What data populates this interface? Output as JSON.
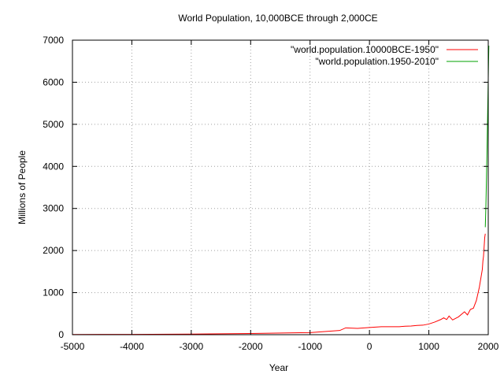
{
  "chart_data": {
    "type": "line",
    "title": "World Population, 10,000BCE through 2,000CE",
    "xlabel": "Year",
    "ylabel": "Millions of People",
    "xlim": [
      -5000,
      2000
    ],
    "ylim": [
      0,
      7000
    ],
    "x_ticks": [
      -5000,
      -4000,
      -3000,
      -2000,
      -1000,
      0,
      1000,
      2000
    ],
    "y_ticks": [
      0,
      1000,
      2000,
      3000,
      4000,
      5000,
      6000,
      7000
    ],
    "grid": true,
    "legend_position": "top-right",
    "series": [
      {
        "name": "\"world.population.10000BCE-1950\"",
        "color": "#ff0000",
        "points": [
          [
            -5000,
            5
          ],
          [
            -4000,
            7
          ],
          [
            -3000,
            14
          ],
          [
            -2000,
            27
          ],
          [
            -1000,
            50
          ],
          [
            -500,
            100
          ],
          [
            -400,
            162
          ],
          [
            -200,
            150
          ],
          [
            0,
            170
          ],
          [
            200,
            190
          ],
          [
            400,
            190
          ],
          [
            500,
            190
          ],
          [
            600,
            200
          ],
          [
            700,
            207
          ],
          [
            800,
            220
          ],
          [
            900,
            226
          ],
          [
            1000,
            254
          ],
          [
            1100,
            301
          ],
          [
            1200,
            360
          ],
          [
            1250,
            400
          ],
          [
            1300,
            360
          ],
          [
            1340,
            443
          ],
          [
            1400,
            350
          ],
          [
            1500,
            425
          ],
          [
            1600,
            545
          ],
          [
            1650,
            470
          ],
          [
            1700,
            600
          ],
          [
            1750,
            629
          ],
          [
            1800,
            813
          ],
          [
            1850,
            1128
          ],
          [
            1900,
            1550
          ],
          [
            1910,
            1750
          ],
          [
            1920,
            1860
          ],
          [
            1930,
            2070
          ],
          [
            1940,
            2300
          ],
          [
            1950,
            2400
          ]
        ]
      },
      {
        "name": "\"world.population.1950-2010\"",
        "color": "#00a000",
        "points": [
          [
            1950,
            2555
          ],
          [
            1960,
            3040
          ],
          [
            1970,
            3710
          ],
          [
            1980,
            4450
          ],
          [
            1990,
            5290
          ],
          [
            2000,
            6090
          ],
          [
            2010,
            6870
          ]
        ]
      }
    ]
  }
}
